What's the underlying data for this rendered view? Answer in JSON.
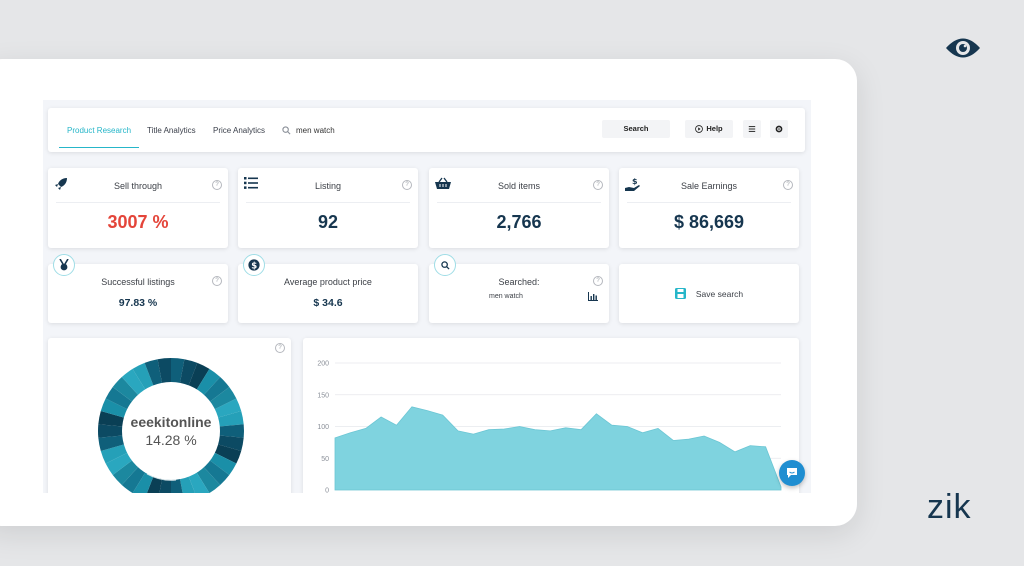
{
  "brand": {
    "logo_text": "zik",
    "eye_icon": "eye-icon"
  },
  "toolbar": {
    "tabs": [
      {
        "label": "Product Research",
        "active": true
      },
      {
        "label": "Title Analytics",
        "active": false
      },
      {
        "label": "Price Analytics",
        "active": false
      }
    ],
    "search_value": "men watch",
    "search_button": "Search",
    "help_button": "Help"
  },
  "stats": [
    {
      "title": "Sell through",
      "value": "3007 %",
      "icon": "rocket-icon",
      "color": "#e4453a"
    },
    {
      "title": "Listing",
      "value": "92",
      "icon": "list-icon"
    },
    {
      "title": "Sold items",
      "value": "2,766",
      "icon": "basket-icon"
    },
    {
      "title": "Sale Earnings",
      "value": "$ 86,669",
      "icon": "hand-dollar-icon"
    }
  ],
  "secondary": {
    "successful": {
      "title": "Successful listings",
      "value": "97.83 %"
    },
    "avg_price": {
      "title": "Average product price",
      "value": "$ 34.6"
    },
    "searched": {
      "title": "Searched:",
      "value": "men watch"
    },
    "save": {
      "label": "Save search"
    }
  },
  "donut": {
    "label": "eeekitonline",
    "value": "14.28 %"
  },
  "chart_data": {
    "type": "area",
    "yticks": [
      "200",
      "150",
      "100",
      "50",
      "0"
    ],
    "ylim": [
      0,
      200
    ],
    "values": [
      82,
      90,
      97,
      115,
      102,
      131,
      125,
      118,
      93,
      88,
      95,
      96,
      100,
      95,
      93,
      98,
      95,
      120,
      102,
      100,
      90,
      97,
      78,
      80,
      85,
      75,
      60,
      70,
      68,
      5
    ],
    "color": "#7fd3df"
  }
}
